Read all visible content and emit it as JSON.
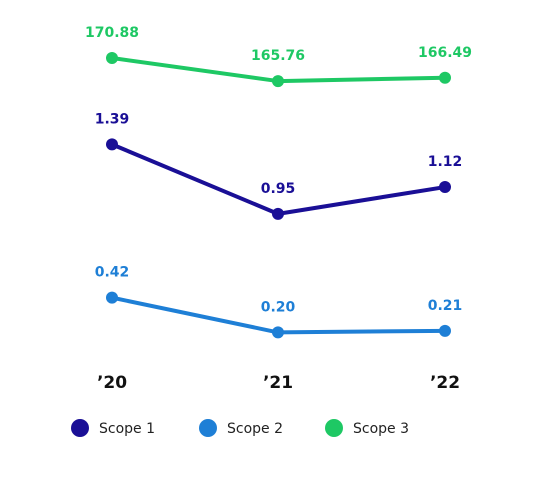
{
  "chart_data": {
    "type": "line",
    "categories": [
      "’20",
      "’21",
      "’22"
    ],
    "series": [
      {
        "name": "Scope 1",
        "color": "#1a0f96",
        "values": [
          1.39,
          0.95,
          1.12
        ]
      },
      {
        "name": "Scope 2",
        "color": "#1e7fd6",
        "values": [
          0.42,
          0.2,
          0.21
        ],
        "value_labels": [
          "0.42",
          "0.20",
          "0.21"
        ]
      },
      {
        "name": "Scope 3",
        "color": "#1ec864",
        "values": [
          170.88,
          165.76,
          166.49
        ]
      }
    ]
  }
}
